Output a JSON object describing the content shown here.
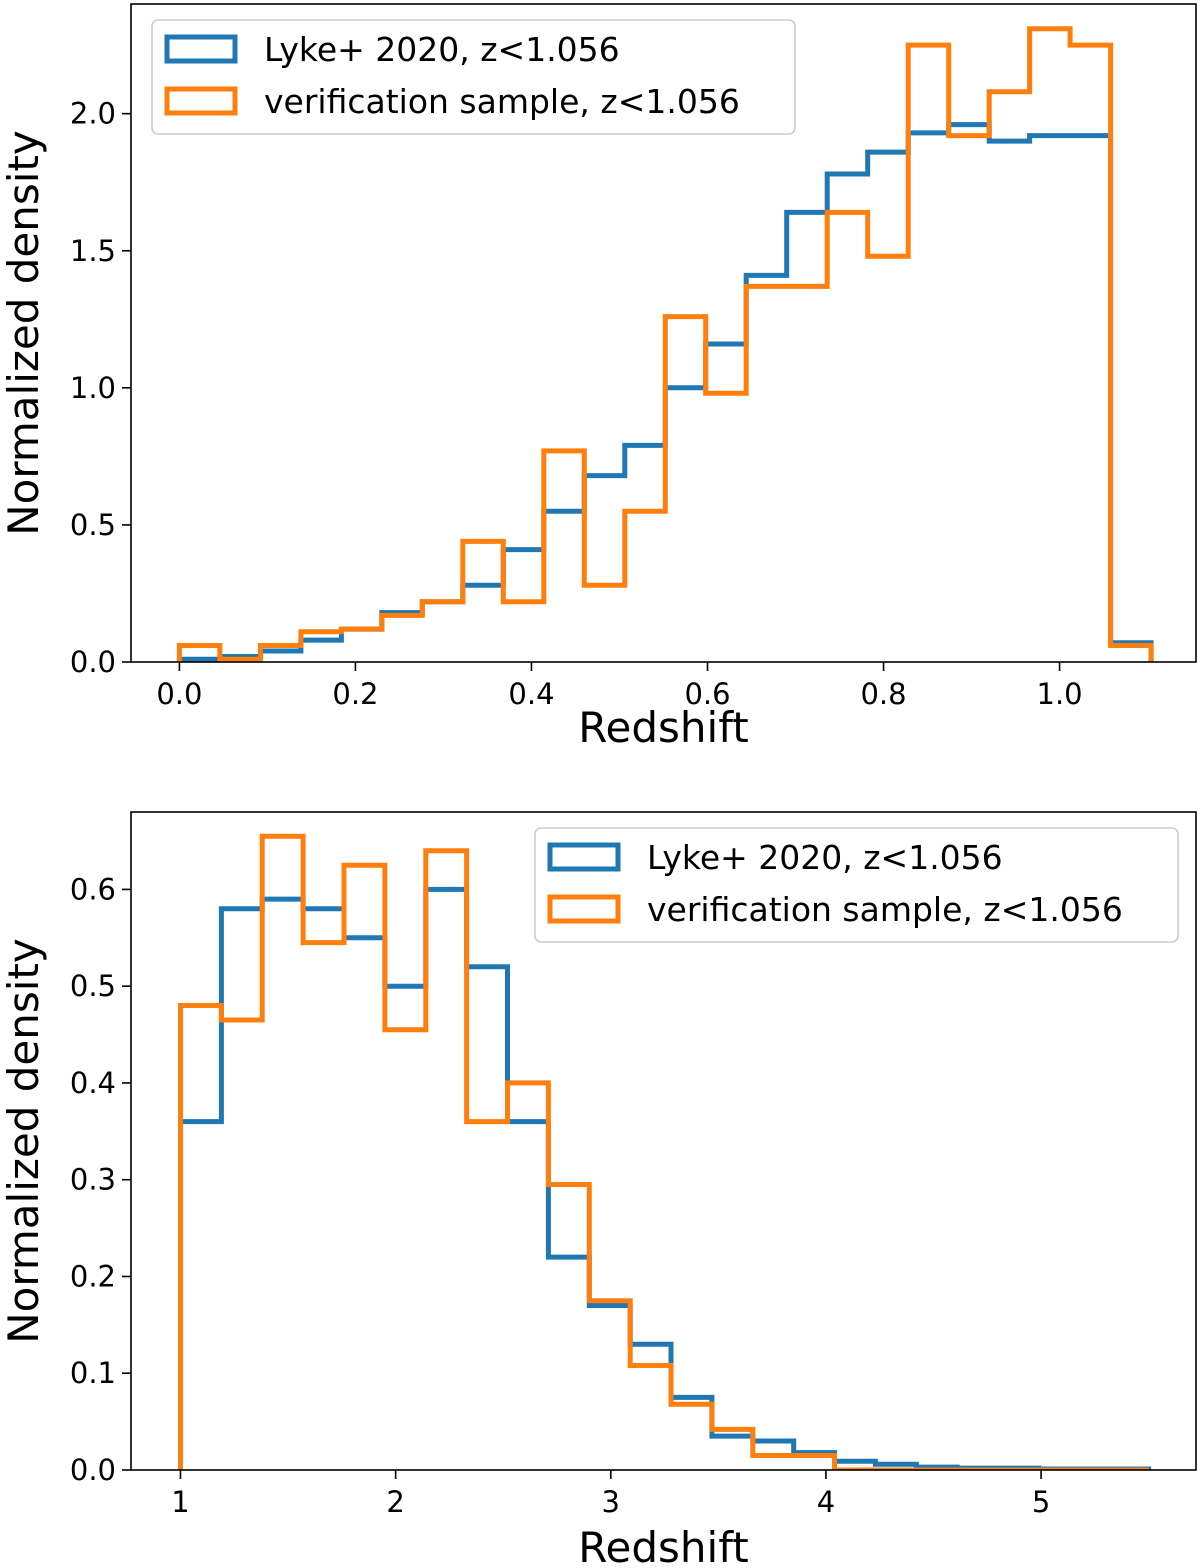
{
  "chart_data": [
    {
      "type": "histogram",
      "panel": "top",
      "xlabel": "Redshift",
      "ylabel": "Normalized density",
      "xlim": [
        -0.055,
        1.155
      ],
      "ylim": [
        0,
        2.4
      ],
      "xticks": [
        0.0,
        0.2,
        0.4,
        0.6,
        0.8,
        1.0
      ],
      "xtick_labels": [
        "0.0",
        "0.2",
        "0.4",
        "0.6",
        "0.8",
        "1.0"
      ],
      "yticks": [
        0.0,
        0.5,
        1.0,
        1.5,
        2.0
      ],
      "ytick_labels": [
        "0.0",
        "0.5",
        "1.0",
        "1.5",
        "2.0"
      ],
      "grid": false,
      "legend_position": "upper-left",
      "bin_edges": [
        0.0,
        0.046,
        0.092,
        0.138,
        0.184,
        0.23,
        0.276,
        0.322,
        0.368,
        0.414,
        0.46,
        0.506,
        0.552,
        0.598,
        0.644,
        0.69,
        0.736,
        0.782,
        0.828,
        0.874,
        0.92,
        0.966,
        1.012,
        1.058,
        1.104
      ],
      "series": [
        {
          "name": "Lyke+ 2020, z<1.056",
          "color": "#1f77b4",
          "values": [
            0.01,
            0.02,
            0.04,
            0.08,
            0.12,
            0.18,
            0.22,
            0.28,
            0.41,
            0.55,
            0.68,
            0.79,
            1.0,
            1.16,
            1.41,
            1.64,
            1.78,
            1.86,
            1.93,
            1.96,
            1.9,
            1.92,
            1.92,
            0.07
          ]
        },
        {
          "name": "verification sample, z<1.056",
          "color": "#ff7f0e",
          "values": [
            0.06,
            0.01,
            0.06,
            0.11,
            0.12,
            0.17,
            0.22,
            0.44,
            0.22,
            0.77,
            0.28,
            0.55,
            1.26,
            0.98,
            1.37,
            1.37,
            1.64,
            1.48,
            2.25,
            1.92,
            2.08,
            2.31,
            2.25,
            0.06
          ]
        }
      ]
    },
    {
      "type": "histogram",
      "panel": "bottom",
      "xlabel": "Redshift",
      "ylabel": "Normalized density",
      "xlim": [
        0.77,
        5.72
      ],
      "ylim": [
        0,
        0.68
      ],
      "xticks": [
        1,
        2,
        3,
        4,
        5
      ],
      "xtick_labels": [
        "1",
        "2",
        "3",
        "4",
        "5"
      ],
      "yticks": [
        0.0,
        0.1,
        0.2,
        0.3,
        0.4,
        0.5,
        0.6
      ],
      "ytick_labels": [
        "0.0",
        "0.1",
        "0.2",
        "0.3",
        "0.4",
        "0.5",
        "0.6"
      ],
      "grid": false,
      "legend_position": "upper-right",
      "bin_edges": [
        1.0,
        1.19,
        1.38,
        1.57,
        1.76,
        1.95,
        2.14,
        2.33,
        2.52,
        2.71,
        2.9,
        3.09,
        3.28,
        3.47,
        3.66,
        3.85,
        4.04,
        4.23,
        4.42,
        4.61,
        4.8,
        4.99,
        5.18,
        5.37,
        5.5
      ],
      "series": [
        {
          "name": "Lyke+ 2020, z<1.056",
          "color": "#1f77b4",
          "values": [
            0.36,
            0.58,
            0.59,
            0.58,
            0.55,
            0.5,
            0.6,
            0.52,
            0.36,
            0.22,
            0.17,
            0.13,
            0.075,
            0.035,
            0.03,
            0.018,
            0.009,
            0.006,
            0.003,
            0.002,
            0.002,
            0.001,
            0.001,
            0.001
          ]
        },
        {
          "name": "verification sample, z<1.056",
          "color": "#ff7f0e",
          "values": [
            0.48,
            0.465,
            0.655,
            0.545,
            0.625,
            0.455,
            0.64,
            0.36,
            0.4,
            0.295,
            0.175,
            0.108,
            0.068,
            0.042,
            0.015,
            0.015,
            0.0,
            0.0,
            0.0,
            0.0,
            0.0,
            0.0,
            0.0,
            0.0
          ]
        }
      ]
    }
  ]
}
